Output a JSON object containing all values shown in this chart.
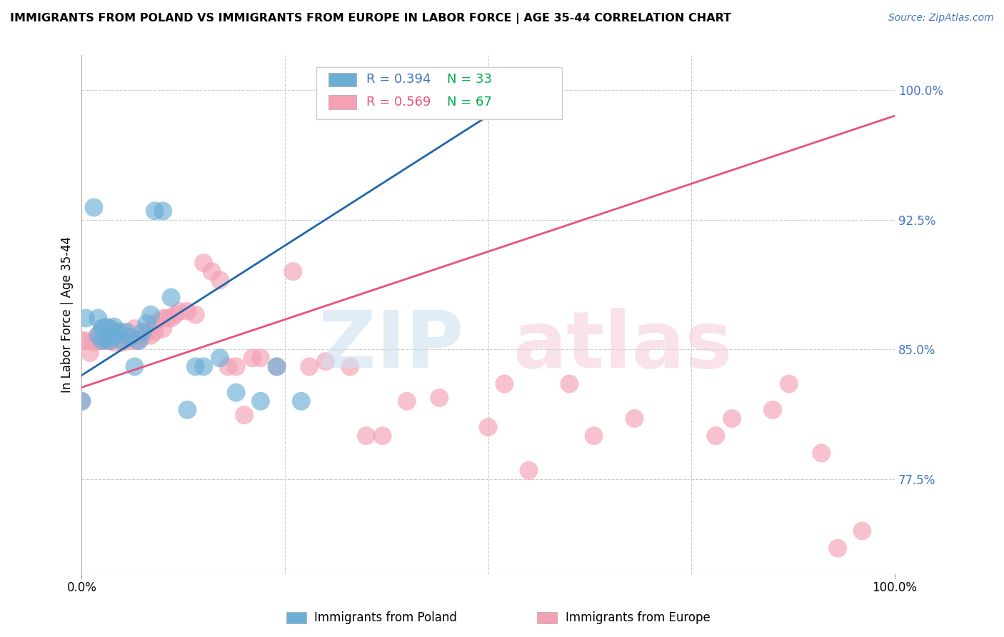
{
  "title": "IMMIGRANTS FROM POLAND VS IMMIGRANTS FROM EUROPE IN LABOR FORCE | AGE 35-44 CORRELATION CHART",
  "source": "Source: ZipAtlas.com",
  "ylabel": "In Labor Force | Age 35-44",
  "xlim": [
    0.0,
    1.0
  ],
  "ylim": [
    0.72,
    1.02
  ],
  "yticks": [
    0.775,
    0.85,
    0.925,
    1.0
  ],
  "ytick_labels": [
    "77.5%",
    "85.0%",
    "92.5%",
    "100.0%"
  ],
  "poland_R": 0.394,
  "poland_N": 33,
  "europe_R": 0.569,
  "europe_N": 67,
  "poland_color": "#6baed6",
  "europe_color": "#f4a0b5",
  "poland_line_color": "#2166ac",
  "europe_line_color": "#e8527a",
  "poland_line": [
    0.0,
    0.835,
    0.55,
    1.0
  ],
  "europe_line": [
    0.0,
    0.828,
    1.0,
    0.985
  ],
  "poland_x": [
    0.0,
    0.005,
    0.015,
    0.02,
    0.02,
    0.025,
    0.025,
    0.03,
    0.03,
    0.035,
    0.035,
    0.04,
    0.04,
    0.045,
    0.05,
    0.055,
    0.06,
    0.065,
    0.07,
    0.075,
    0.08,
    0.085,
    0.09,
    0.1,
    0.11,
    0.13,
    0.14,
    0.15,
    0.17,
    0.19,
    0.22,
    0.24,
    0.27
  ],
  "poland_y": [
    0.82,
    0.868,
    0.932,
    0.868,
    0.858,
    0.855,
    0.862,
    0.863,
    0.856,
    0.855,
    0.862,
    0.858,
    0.863,
    0.86,
    0.855,
    0.86,
    0.857,
    0.84,
    0.855,
    0.86,
    0.865,
    0.87,
    0.93,
    0.93,
    0.88,
    0.815,
    0.84,
    0.84,
    0.845,
    0.825,
    0.82,
    0.84,
    0.82
  ],
  "europe_x": [
    0.0,
    0.0,
    0.005,
    0.01,
    0.015,
    0.02,
    0.02,
    0.025,
    0.025,
    0.03,
    0.03,
    0.03,
    0.035,
    0.035,
    0.04,
    0.04,
    0.045,
    0.05,
    0.05,
    0.055,
    0.06,
    0.065,
    0.065,
    0.07,
    0.075,
    0.08,
    0.085,
    0.09,
    0.09,
    0.1,
    0.1,
    0.105,
    0.11,
    0.115,
    0.12,
    0.13,
    0.14,
    0.15,
    0.16,
    0.17,
    0.18,
    0.19,
    0.2,
    0.21,
    0.22,
    0.24,
    0.26,
    0.28,
    0.3,
    0.33,
    0.35,
    0.37,
    0.4,
    0.44,
    0.5,
    0.52,
    0.55,
    0.6,
    0.63,
    0.68,
    0.78,
    0.8,
    0.85,
    0.87,
    0.91,
    0.93,
    0.96
  ],
  "europe_y": [
    0.82,
    0.855,
    0.855,
    0.848,
    0.854,
    0.855,
    0.858,
    0.855,
    0.862,
    0.855,
    0.857,
    0.862,
    0.855,
    0.86,
    0.854,
    0.86,
    0.856,
    0.854,
    0.86,
    0.857,
    0.855,
    0.855,
    0.862,
    0.855,
    0.857,
    0.86,
    0.858,
    0.86,
    0.865,
    0.862,
    0.868,
    0.868,
    0.868,
    0.87,
    0.872,
    0.872,
    0.87,
    0.9,
    0.895,
    0.89,
    0.84,
    0.84,
    0.812,
    0.845,
    0.845,
    0.84,
    0.895,
    0.84,
    0.843,
    0.84,
    0.8,
    0.8,
    0.82,
    0.822,
    0.805,
    0.83,
    0.78,
    0.83,
    0.8,
    0.81,
    0.8,
    0.81,
    0.815,
    0.83,
    0.79,
    0.735,
    0.745
  ]
}
